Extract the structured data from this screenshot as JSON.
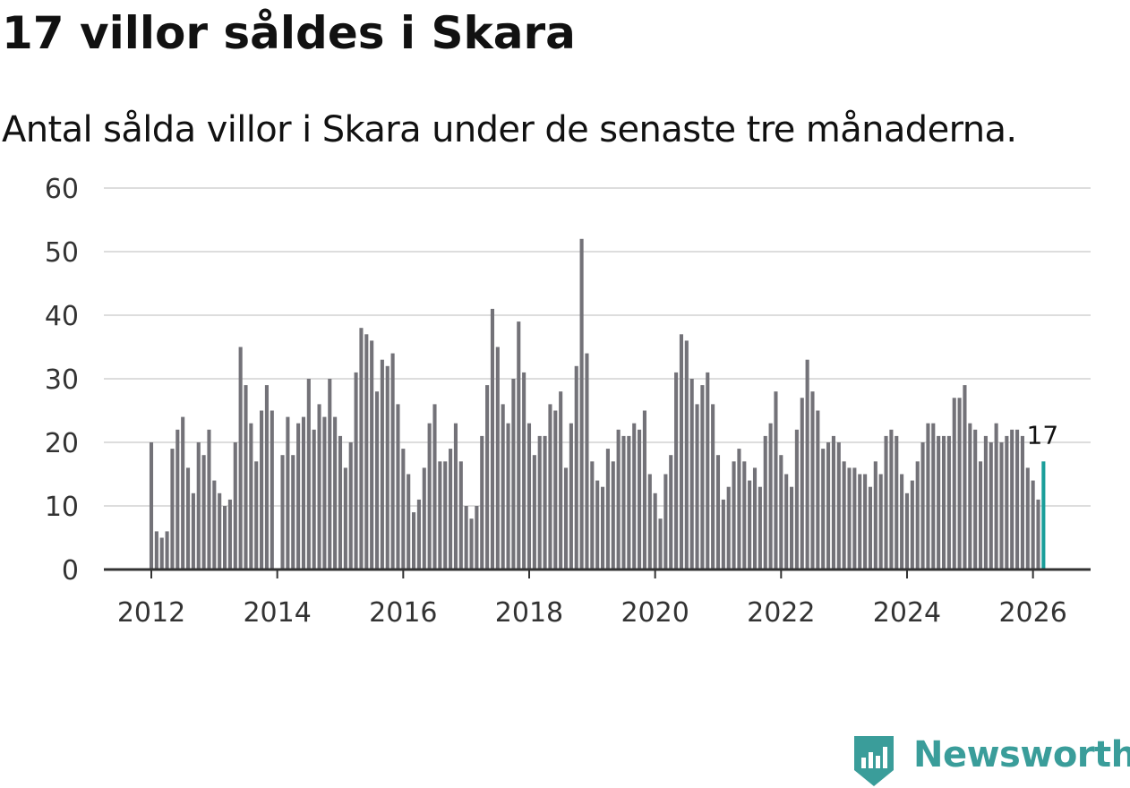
{
  "title": "17 villor såldes i Skara",
  "subtitle": "Antal sålda villor i Skara under de senaste tre månaderna.",
  "brand": "Newsworthy",
  "colors": {
    "bar": "#737278",
    "highlight": "#1a9e9a",
    "grid": "#dddddd",
    "axis": "#333333",
    "brand": "#3a9d9a"
  },
  "chart_data": {
    "type": "bar",
    "title": "17 villor såldes i Skara",
    "subtitle": "Antal sålda villor i Skara under de senaste tre månaderna.",
    "xlabel": "",
    "ylabel": "",
    "ylim": [
      0,
      60
    ],
    "yticks": [
      0,
      10,
      20,
      30,
      40,
      50,
      60
    ],
    "xticks": [
      "2012",
      "2014",
      "2016",
      "2018",
      "2020",
      "2022",
      "2024",
      "2026"
    ],
    "start": "2012-01",
    "frequency": "monthly",
    "grid": true,
    "values": [
      20,
      6,
      5,
      6,
      19,
      22,
      24,
      16,
      12,
      20,
      18,
      22,
      14,
      12,
      10,
      11,
      20,
      35,
      29,
      23,
      17,
      25,
      29,
      25,
      0,
      18,
      24,
      18,
      23,
      24,
      30,
      22,
      26,
      24,
      30,
      24,
      21,
      16,
      20,
      31,
      38,
      37,
      36,
      28,
      33,
      32,
      34,
      26,
      19,
      15,
      9,
      11,
      16,
      23,
      26,
      17,
      17,
      19,
      23,
      17,
      10,
      8,
      10,
      21,
      29,
      41,
      35,
      26,
      23,
      30,
      39,
      31,
      23,
      18,
      21,
      21,
      26,
      25,
      28,
      16,
      23,
      32,
      52,
      34,
      17,
      14,
      13,
      19,
      17,
      22,
      21,
      21,
      23,
      22,
      25,
      15,
      12,
      8,
      15,
      18,
      31,
      37,
      36,
      30,
      26,
      29,
      31,
      26,
      18,
      11,
      13,
      17,
      19,
      17,
      14,
      16,
      13,
      21,
      23,
      28,
      18,
      15,
      13,
      22,
      27,
      33,
      28,
      25,
      19,
      20,
      21,
      20,
      17,
      16,
      16,
      15,
      15,
      13,
      17,
      15,
      21,
      22,
      21,
      15,
      12,
      14,
      17,
      20,
      23,
      23,
      21,
      21,
      21,
      27,
      27,
      29,
      23,
      22,
      17,
      21,
      20,
      23,
      20,
      21,
      22,
      22,
      21,
      16,
      14,
      11,
      17
    ],
    "highlight_last": true,
    "annotation": {
      "label": "17",
      "value": 17
    }
  }
}
